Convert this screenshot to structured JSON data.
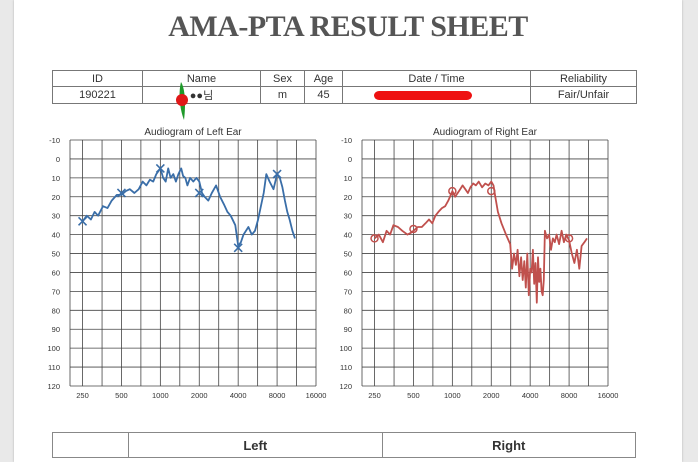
{
  "title": "AMA-PTA RESULT SHEET",
  "info": {
    "headers": [
      "ID",
      "Name",
      "Sex",
      "Age",
      "Date / Time",
      "Reliability"
    ],
    "values": {
      "id": "190221",
      "name": "●●님",
      "sex": "m",
      "age": "45",
      "date_time": "",
      "reliability": "Fair/Unfair"
    }
  },
  "redaction_colors": {
    "name_dot": "#e01818",
    "name_stroke": "#1f9a2a",
    "date": "#ee1111"
  },
  "chart_data": [
    {
      "type": "line",
      "title": "Audiogram of Left Ear",
      "x_ticks": [
        "250",
        "500",
        "1000",
        "2000",
        "4000",
        "8000",
        "16000"
      ],
      "y_ticks": [
        "-10",
        "0",
        "10",
        "20",
        "30",
        "40",
        "50",
        "60",
        "70",
        "80",
        "90",
        "100",
        "110",
        "120"
      ],
      "ylim": [
        -10,
        120
      ],
      "y_inverted": true,
      "grid": true,
      "color": "#3a6ea8",
      "series": [
        {
          "values_x": [
            250,
            270,
            290,
            310,
            330,
            360,
            390,
            420,
            460,
            500,
            540,
            580,
            630,
            680,
            730,
            780,
            830,
            880,
            930,
            1000,
            1050,
            1100,
            1150,
            1200,
            1260,
            1320,
            1380,
            1450,
            1500,
            1560,
            1620,
            1700,
            1800,
            1900,
            2000,
            2100,
            2200,
            2350,
            2500,
            2700,
            2900,
            3100,
            3300,
            3500,
            3800,
            4000,
            4200,
            4400,
            4600,
            4800,
            5100,
            5400,
            5700,
            6000,
            6300,
            6600,
            7000,
            7500,
            8000,
            8400,
            8800,
            9200,
            9600,
            10000,
            10500,
            11000
          ],
          "values_y": [
            33,
            30,
            32,
            28,
            30,
            25,
            26,
            22,
            19,
            19,
            17,
            16,
            18,
            16,
            12,
            14,
            11,
            12,
            8,
            5,
            10,
            12,
            5,
            10,
            8,
            12,
            8,
            5,
            9,
            10,
            14,
            10,
            12,
            10,
            12,
            18,
            20,
            22,
            18,
            14,
            20,
            24,
            28,
            30,
            35,
            46,
            44,
            40,
            38,
            36,
            40,
            38,
            32,
            25,
            18,
            8,
            12,
            16,
            8,
            10,
            15,
            22,
            28,
            32,
            38,
            42
          ]
        }
      ],
      "markers": {
        "symbol": "x",
        "points": [
          [
            250,
            33
          ],
          [
            500,
            18
          ],
          [
            1000,
            5
          ],
          [
            2000,
            18
          ],
          [
            4000,
            47
          ],
          [
            8000,
            8
          ]
        ]
      }
    },
    {
      "type": "line",
      "title": "Audiogram of Right Ear",
      "x_ticks": [
        "250",
        "500",
        "1000",
        "2000",
        "4000",
        "8000",
        "16000"
      ],
      "y_ticks": [
        "-10",
        "0",
        "10",
        "20",
        "30",
        "40",
        "50",
        "60",
        "70",
        "80",
        "90",
        "100",
        "110",
        "120"
      ],
      "ylim": [
        -10,
        120
      ],
      "y_inverted": true,
      "grid": true,
      "color": "#c0504d",
      "series": [
        {
          "values_x": [
            250,
            270,
            290,
            310,
            330,
            350,
            380,
            410,
            450,
            480,
            500,
            540,
            580,
            620,
            660,
            700,
            740,
            780,
            830,
            880,
            930,
            1000,
            1050,
            1100,
            1150,
            1200,
            1260,
            1320,
            1380,
            1450,
            1520,
            1600,
            1700,
            1800,
            1900,
            2000,
            2080,
            2150,
            2250,
            2400,
            2600,
            2800,
            2900,
            3000,
            3100,
            3200,
            3300,
            3400,
            3500,
            3600,
            3700,
            3800,
            3900,
            4000,
            4100,
            4200,
            4300,
            4400,
            4500,
            4600,
            4700,
            4800,
            4900,
            5000,
            5100,
            5200,
            5400,
            5600,
            5800,
            6000,
            6200,
            6400,
            6700,
            7000,
            7300,
            7600,
            8000,
            8400,
            8800,
            9200,
            9600,
            10000,
            10500,
            11000
          ],
          "values_y": [
            42,
            40,
            44,
            38,
            40,
            35,
            36,
            38,
            40,
            39,
            38,
            36,
            36,
            34,
            32,
            34,
            30,
            28,
            26,
            25,
            22,
            17,
            20,
            18,
            16,
            14,
            16,
            18,
            15,
            13,
            14,
            12,
            15,
            13,
            14,
            12,
            14,
            20,
            28,
            34,
            40,
            45,
            58,
            50,
            56,
            48,
            62,
            52,
            64,
            54,
            68,
            50,
            72,
            58,
            60,
            48,
            66,
            55,
            76,
            52,
            65,
            58,
            70,
            72,
            64,
            38,
            42,
            40,
            48,
            42,
            44,
            40,
            45,
            38,
            44,
            40,
            43,
            50,
            55,
            48,
            58,
            46,
            44,
            42
          ]
        }
      ],
      "markers": {
        "symbol": "o",
        "points": [
          [
            250,
            42
          ],
          [
            500,
            37
          ],
          [
            1000,
            17
          ],
          [
            2000,
            17
          ],
          [
            8000,
            42
          ]
        ]
      }
    }
  ],
  "bottom_table": {
    "left_label": "Left",
    "right_label": "Right"
  }
}
